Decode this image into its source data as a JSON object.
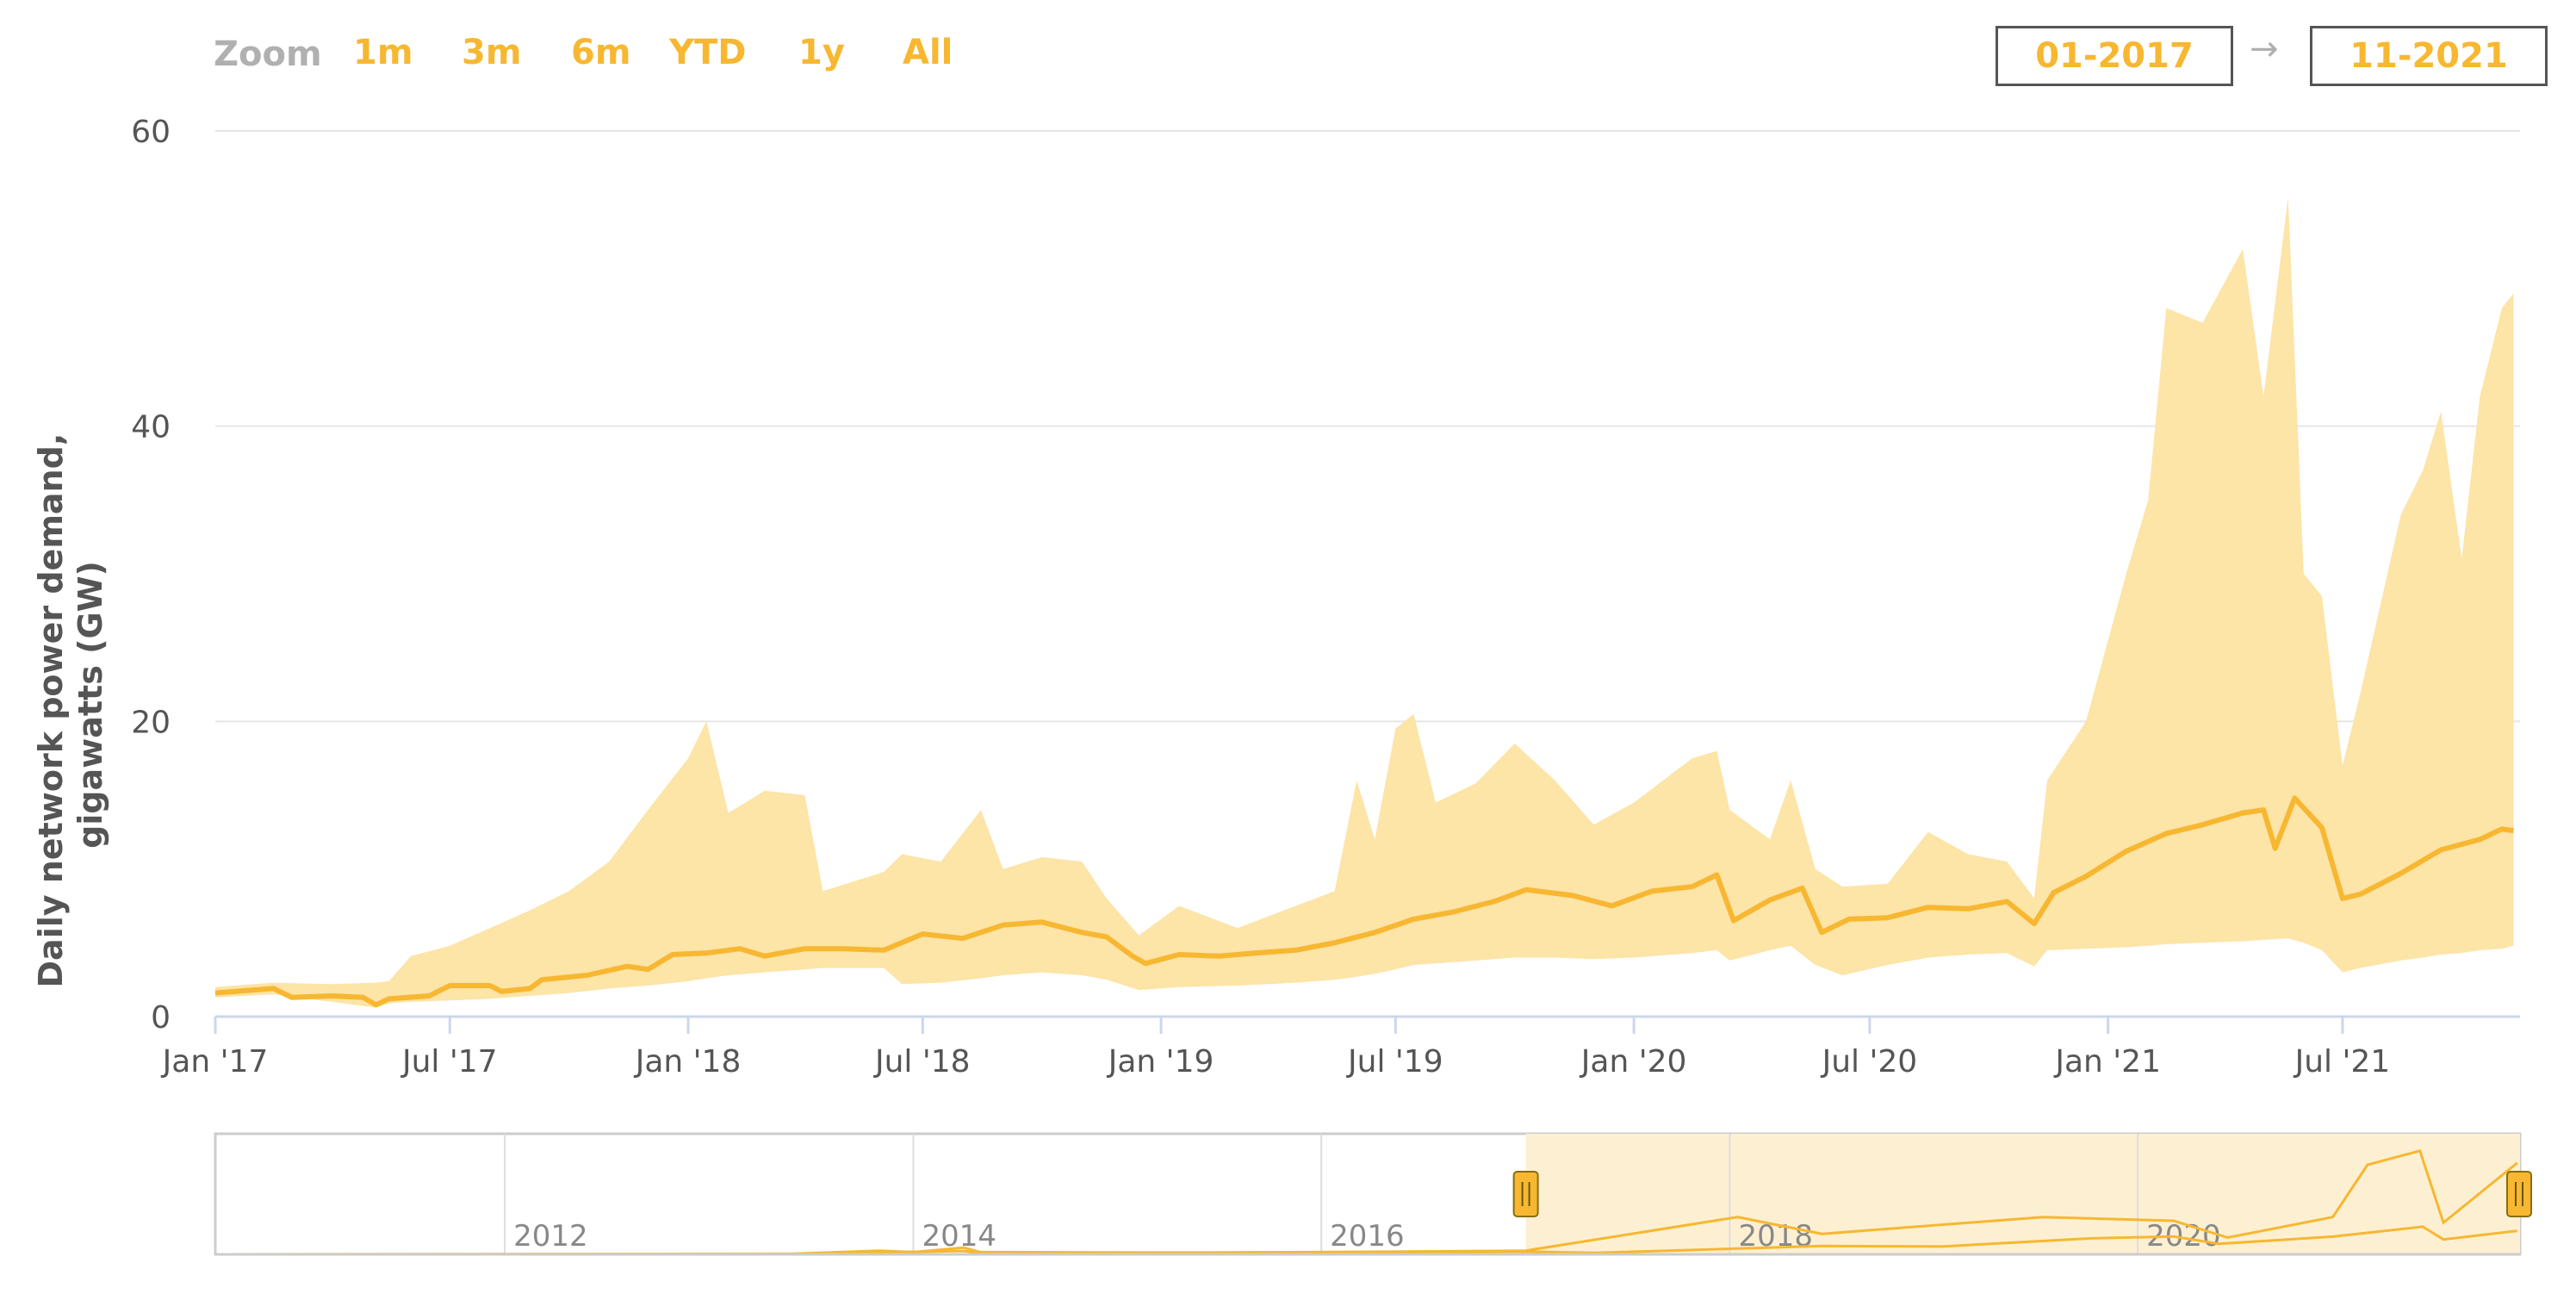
{
  "zoom": {
    "label": "Zoom",
    "buttons": [
      "1m",
      "3m",
      "6m",
      "YTD",
      "1y",
      "All"
    ]
  },
  "range": {
    "from": "01-2017",
    "arrow": "→",
    "to": "11-2021"
  },
  "colors": {
    "accent": "#f7b731",
    "band": "#fde4a7",
    "nav_mask": "#fdf0d2"
  },
  "chart_data": {
    "type": "area",
    "title": "",
    "ylabel_lines": [
      "Daily network power demand,",
      "gigawatts (GW)"
    ],
    "xlabel": "",
    "ylim": [
      0,
      60
    ],
    "yticks": [
      0,
      20,
      40,
      60
    ],
    "x_range": [
      "2017-01-01",
      "2021-11-15"
    ],
    "xticks": [
      {
        "date": "2017-01-01",
        "label": "Jan '17"
      },
      {
        "date": "2017-07-01",
        "label": "Jul '17"
      },
      {
        "date": "2018-01-01",
        "label": "Jan '18"
      },
      {
        "date": "2018-07-01",
        "label": "Jul '18"
      },
      {
        "date": "2019-01-01",
        "label": "Jan '19"
      },
      {
        "date": "2019-07-01",
        "label": "Jul '19"
      },
      {
        "date": "2020-01-01",
        "label": "Jan '20"
      },
      {
        "date": "2020-07-01",
        "label": "Jul '20"
      },
      {
        "date": "2021-01-01",
        "label": "Jan '21"
      },
      {
        "date": "2021-07-01",
        "label": "Jul '21"
      }
    ],
    "grid": true,
    "series": [
      {
        "kind": "line",
        "points": [
          [
            "2017-01-01",
            1.6
          ],
          [
            "2017-02-15",
            1.9
          ],
          [
            "2017-03-01",
            1.3
          ],
          [
            "2017-04-01",
            1.4
          ],
          [
            "2017-04-25",
            1.3
          ],
          [
            "2017-05-05",
            0.8
          ],
          [
            "2017-05-15",
            1.2
          ],
          [
            "2017-06-15",
            1.4
          ],
          [
            "2017-07-01",
            2.1
          ],
          [
            "2017-08-01",
            2.1
          ],
          [
            "2017-08-10",
            1.7
          ],
          [
            "2017-09-01",
            1.9
          ],
          [
            "2017-09-10",
            2.5
          ],
          [
            "2017-10-15",
            2.8
          ],
          [
            "2017-11-15",
            3.4
          ],
          [
            "2017-12-01",
            3.2
          ],
          [
            "2017-12-20",
            4.2
          ],
          [
            "2018-01-15",
            4.3
          ],
          [
            "2018-02-10",
            4.6
          ],
          [
            "2018-03-01",
            4.1
          ],
          [
            "2018-04-01",
            4.6
          ],
          [
            "2018-05-01",
            4.6
          ],
          [
            "2018-06-01",
            4.5
          ],
          [
            "2018-07-01",
            5.6
          ],
          [
            "2018-08-01",
            5.3
          ],
          [
            "2018-09-01",
            6.2
          ],
          [
            "2018-10-01",
            6.4
          ],
          [
            "2018-11-01",
            5.7
          ],
          [
            "2018-11-20",
            5.4
          ],
          [
            "2018-12-10",
            4.1
          ],
          [
            "2018-12-20",
            3.6
          ],
          [
            "2019-01-15",
            4.2
          ],
          [
            "2019-02-15",
            4.1
          ],
          [
            "2019-03-15",
            4.3
          ],
          [
            "2019-04-15",
            4.5
          ],
          [
            "2019-05-15",
            5.0
          ],
          [
            "2019-06-15",
            5.7
          ],
          [
            "2019-07-15",
            6.6
          ],
          [
            "2019-08-15",
            7.1
          ],
          [
            "2019-09-15",
            7.8
          ],
          [
            "2019-10-10",
            8.6
          ],
          [
            "2019-11-15",
            8.2
          ],
          [
            "2019-12-15",
            7.5
          ],
          [
            "2020-01-15",
            8.5
          ],
          [
            "2020-02-15",
            8.8
          ],
          [
            "2020-03-05",
            9.6
          ],
          [
            "2020-03-18",
            6.5
          ],
          [
            "2020-04-15",
            7.9
          ],
          [
            "2020-05-10",
            8.7
          ],
          [
            "2020-05-25",
            5.7
          ],
          [
            "2020-06-15",
            6.6
          ],
          [
            "2020-07-15",
            6.7
          ],
          [
            "2020-08-15",
            7.4
          ],
          [
            "2020-09-15",
            7.3
          ],
          [
            "2020-10-15",
            7.8
          ],
          [
            "2020-11-05",
            6.3
          ],
          [
            "2020-11-20",
            8.4
          ],
          [
            "2020-12-15",
            9.5
          ],
          [
            "2021-01-15",
            11.2
          ],
          [
            "2021-02-15",
            12.4
          ],
          [
            "2021-03-15",
            13.0
          ],
          [
            "2021-04-15",
            13.8
          ],
          [
            "2021-05-01",
            14.0
          ],
          [
            "2021-05-10",
            11.4
          ],
          [
            "2021-05-25",
            14.8
          ],
          [
            "2021-06-15",
            12.8
          ],
          [
            "2021-07-01",
            8.0
          ],
          [
            "2021-07-15",
            8.3
          ],
          [
            "2021-08-15",
            9.7
          ],
          [
            "2021-09-15",
            11.3
          ],
          [
            "2021-10-15",
            12.0
          ],
          [
            "2021-11-01",
            12.7
          ],
          [
            "2021-11-10",
            12.6
          ]
        ]
      },
      {
        "kind": "band",
        "points": [
          [
            "2017-01-01",
            1.3,
            2.0
          ],
          [
            "2017-02-15",
            1.5,
            2.3
          ],
          [
            "2017-04-01",
            1.0,
            2.2
          ],
          [
            "2017-05-05",
            0.6,
            2.3
          ],
          [
            "2017-05-15",
            0.9,
            2.4
          ],
          [
            "2017-06-01",
            1.0,
            4.1
          ],
          [
            "2017-07-01",
            1.1,
            4.8
          ],
          [
            "2017-08-01",
            1.2,
            6.0
          ],
          [
            "2017-09-01",
            1.4,
            7.2
          ],
          [
            "2017-10-01",
            1.6,
            8.5
          ],
          [
            "2017-11-01",
            1.9,
            10.5
          ],
          [
            "2017-12-01",
            2.1,
            14.0
          ],
          [
            "2018-01-01",
            2.4,
            17.5
          ],
          [
            "2018-01-15",
            2.6,
            20.0
          ],
          [
            "2018-02-01",
            2.8,
            13.8
          ],
          [
            "2018-03-01",
            3.0,
            15.3
          ],
          [
            "2018-04-01",
            3.2,
            15.0
          ],
          [
            "2018-04-15",
            3.3,
            8.5
          ],
          [
            "2018-06-01",
            3.3,
            9.8
          ],
          [
            "2018-06-15",
            2.2,
            11.0
          ],
          [
            "2018-07-15",
            2.3,
            10.5
          ],
          [
            "2018-08-15",
            2.6,
            14.0
          ],
          [
            "2018-09-01",
            2.8,
            10.0
          ],
          [
            "2018-10-01",
            3.0,
            10.8
          ],
          [
            "2018-11-01",
            2.8,
            10.5
          ],
          [
            "2018-11-20",
            2.5,
            8.0
          ],
          [
            "2018-12-15",
            1.8,
            5.5
          ],
          [
            "2019-01-15",
            2.0,
            7.5
          ],
          [
            "2019-03-01",
            2.1,
            6.0
          ],
          [
            "2019-04-15",
            2.3,
            7.5
          ],
          [
            "2019-05-15",
            2.5,
            8.5
          ],
          [
            "2019-06-01",
            2.7,
            16.0
          ],
          [
            "2019-06-15",
            2.9,
            12.0
          ],
          [
            "2019-07-01",
            3.2,
            19.5
          ],
          [
            "2019-07-15",
            3.5,
            20.5
          ],
          [
            "2019-08-01",
            3.6,
            14.5
          ],
          [
            "2019-09-01",
            3.8,
            15.8
          ],
          [
            "2019-10-01",
            4.0,
            18.5
          ],
          [
            "2019-11-01",
            4.0,
            16.0
          ],
          [
            "2019-12-01",
            3.9,
            13.0
          ],
          [
            "2020-01-01",
            4.0,
            14.5
          ],
          [
            "2020-02-15",
            4.3,
            17.5
          ],
          [
            "2020-03-05",
            4.5,
            18.0
          ],
          [
            "2020-03-15",
            3.8,
            14.0
          ],
          [
            "2020-04-15",
            4.5,
            12.0
          ],
          [
            "2020-05-01",
            4.8,
            16.0
          ],
          [
            "2020-05-20",
            3.5,
            10.0
          ],
          [
            "2020-06-10",
            2.8,
            8.8
          ],
          [
            "2020-07-15",
            3.5,
            9.0
          ],
          [
            "2020-08-15",
            4.0,
            12.5
          ],
          [
            "2020-09-15",
            4.2,
            11.0
          ],
          [
            "2020-10-15",
            4.3,
            10.5
          ],
          [
            "2020-11-05",
            3.4,
            8.0
          ],
          [
            "2020-11-15",
            4.5,
            16.0
          ],
          [
            "2020-12-15",
            4.6,
            20.0
          ],
          [
            "2021-01-15",
            4.7,
            30.0
          ],
          [
            "2021-02-01",
            4.8,
            35.0
          ],
          [
            "2021-02-15",
            4.9,
            48.0
          ],
          [
            "2021-03-15",
            5.0,
            47.0
          ],
          [
            "2021-04-15",
            5.1,
            52.0
          ],
          [
            "2021-05-01",
            5.2,
            42.0
          ],
          [
            "2021-05-20",
            5.3,
            55.5
          ],
          [
            "2021-06-01",
            5.0,
            30.0
          ],
          [
            "2021-06-15",
            4.5,
            28.5
          ],
          [
            "2021-07-01",
            3.0,
            17.0
          ],
          [
            "2021-07-15",
            3.3,
            22.0
          ],
          [
            "2021-08-15",
            3.8,
            34.0
          ],
          [
            "2021-09-01",
            4.0,
            37.0
          ],
          [
            "2021-09-15",
            4.2,
            41.0
          ],
          [
            "2021-10-01",
            4.3,
            31.0
          ],
          [
            "2021-10-15",
            4.5,
            42.0
          ],
          [
            "2021-11-01",
            4.6,
            48.0
          ],
          [
            "2021-11-10",
            4.8,
            49.0
          ]
        ]
      }
    ],
    "navigator": {
      "x_range": [
        "2010-08-01",
        "2021-11-15"
      ],
      "ticks": [
        {
          "date": "2012-01-01",
          "label": "2012"
        },
        {
          "date": "2014-01-01",
          "label": "2014"
        },
        {
          "date": "2016-01-01",
          "label": "2016"
        },
        {
          "date": "2018-01-01",
          "label": "2018"
        },
        {
          "date": "2020-01-01",
          "label": "2020"
        }
      ],
      "selection": [
        "2017-01-01",
        "2021-11-15"
      ],
      "ymax": 60,
      "upper": [
        [
          "2010-08-01",
          0
        ],
        [
          "2013-06-01",
          0.3
        ],
        [
          "2013-11-01",
          2.0
        ],
        [
          "2014-01-01",
          1.2
        ],
        [
          "2014-04-01",
          3.6
        ],
        [
          "2014-05-01",
          1.2
        ],
        [
          "2015-06-01",
          0.9
        ],
        [
          "2016-06-01",
          1.5
        ],
        [
          "2017-01-01",
          2.0
        ],
        [
          "2018-01-15",
          20.0
        ],
        [
          "2018-06-15",
          11.0
        ],
        [
          "2019-07-15",
          20.0
        ],
        [
          "2020-03-05",
          18.0
        ],
        [
          "2020-06-10",
          9.0
        ],
        [
          "2020-12-15",
          20.0
        ],
        [
          "2021-02-15",
          48.0
        ],
        [
          "2021-05-20",
          55.5
        ],
        [
          "2021-07-01",
          17.0
        ],
        [
          "2021-11-10",
          49.0
        ]
      ],
      "lower": [
        [
          "2010-08-01",
          0
        ],
        [
          "2013-06-01",
          0.2
        ],
        [
          "2013-11-01",
          1.0
        ],
        [
          "2014-04-01",
          1.8
        ],
        [
          "2014-05-01",
          0.8
        ],
        [
          "2016-06-01",
          1.2
        ],
        [
          "2017-01-01",
          1.5
        ],
        [
          "2017-05-05",
          0.8
        ],
        [
          "2018-06-15",
          4.5
        ],
        [
          "2019-01-15",
          4.2
        ],
        [
          "2019-10-10",
          8.6
        ],
        [
          "2020-03-05",
          9.6
        ],
        [
          "2020-05-25",
          5.7
        ],
        [
          "2020-12-15",
          9.5
        ],
        [
          "2021-05-25",
          14.8
        ],
        [
          "2021-07-01",
          8.0
        ],
        [
          "2021-11-10",
          12.6
        ]
      ]
    }
  }
}
